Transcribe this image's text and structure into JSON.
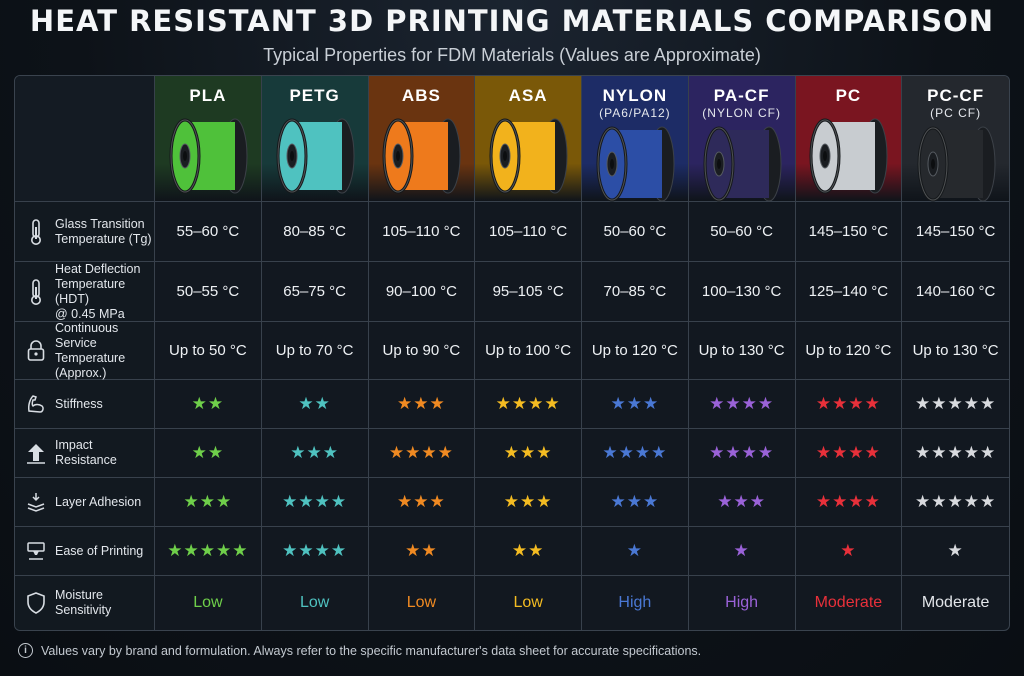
{
  "title": "HEAT RESISTANT 3D PRINTING MATERIALS COMPARISON",
  "subtitle": "Typical Properties for FDM Materials (Values are Approximate)",
  "materials": [
    {
      "name": "PLA",
      "sub": "",
      "bg": "#1e3a22",
      "spool": "#4fc13a",
      "accent": "#6fcf4a"
    },
    {
      "name": "PETG",
      "sub": "",
      "bg": "#173a3a",
      "spool": "#4fc2c0",
      "accent": "#4fc2c0"
    },
    {
      "name": "ABS",
      "sub": "",
      "bg": "#6a3410",
      "spool": "#ee7a1c",
      "accent": "#f08a22"
    },
    {
      "name": "ASA",
      "sub": "",
      "bg": "#7a5808",
      "spool": "#f2b21c",
      "accent": "#f4bc22"
    },
    {
      "name": "NYLON",
      "sub": "(PA6/PA12)",
      "bg": "#1d2c66",
      "spool": "#2c4ea6",
      "accent": "#4a78d4"
    },
    {
      "name": "PA-CF",
      "sub": "(NYLON CF)",
      "bg": "#2c2460",
      "spool": "#2e2a5a",
      "accent": "#9a62d8"
    },
    {
      "name": "PC",
      "sub": "",
      "bg": "#7a1520",
      "spool": "#c8ccd0",
      "accent": "#e8303a"
    },
    {
      "name": "PC-CF",
      "sub": "(PC CF)",
      "bg": "#24282e",
      "spool": "#26292d",
      "accent": "#d8dade"
    }
  ],
  "rows": [
    {
      "label": "Glass Transition\nTemperature (Tg)",
      "icon": "thermometer-icon",
      "type": "text",
      "values": [
        "55–60 °C",
        "80–85 °C",
        "105–110 °C",
        "105–110 °C",
        "50–60 °C",
        "50–60 °C",
        "145–150 °C",
        "145–150 °C"
      ]
    },
    {
      "label": "Heat Deflection\nTemperature (HDT)\n@ 0.45 MPa",
      "icon": "thermometer-icon",
      "type": "text",
      "values": [
        "50–55 °C",
        "65–75 °C",
        "90–100 °C",
        "95–105 °C",
        "70–85 °C",
        "100–130 °C",
        "125–140 °C",
        "140–160 °C"
      ]
    },
    {
      "label": "Continuous Service\nTemperature\n(Approx.)",
      "icon": "lock-icon",
      "type": "text",
      "values": [
        "Up to 50 °C",
        "Up to 70 °C",
        "Up to 90 °C",
        "Up to 100 °C",
        "Up to 120 °C",
        "Up to 130 °C",
        "Up to 120 °C",
        "Up to 130 °C"
      ]
    },
    {
      "label": "Stiffness",
      "icon": "flexed-arm-icon",
      "type": "stars",
      "values": [
        2,
        2,
        3,
        4,
        3,
        4,
        4,
        5
      ]
    },
    {
      "label": "Impact\nResistance",
      "icon": "impact-arrow-icon",
      "type": "stars",
      "values": [
        2,
        3,
        4,
        3,
        4,
        4,
        4,
        5
      ]
    },
    {
      "label": "Layer Adhesion",
      "icon": "layers-icon",
      "type": "stars",
      "values": [
        3,
        4,
        3,
        3,
        3,
        3,
        4,
        5
      ]
    },
    {
      "label": "Ease of Printing",
      "icon": "printer-nozzle-icon",
      "type": "stars",
      "values": [
        5,
        4,
        2,
        2,
        1,
        1,
        1,
        1
      ]
    },
    {
      "label": "Moisture\nSensitivity",
      "icon": "shield-icon",
      "type": "moisture",
      "values": [
        "Low",
        "Low",
        "Low",
        "Low",
        "High",
        "High",
        "Moderate",
        "Moderate"
      ]
    }
  ],
  "moisture_colors": [
    "#6fcf4a",
    "#4fc2c0",
    "#f08a22",
    "#f4bc22",
    "#4a78d4",
    "#9a62d8",
    "#e8303a",
    "#e3e6ea"
  ],
  "footer": "Values vary by brand and formulation. Always refer to the specific manufacturer's data sheet for accurate specifications."
}
